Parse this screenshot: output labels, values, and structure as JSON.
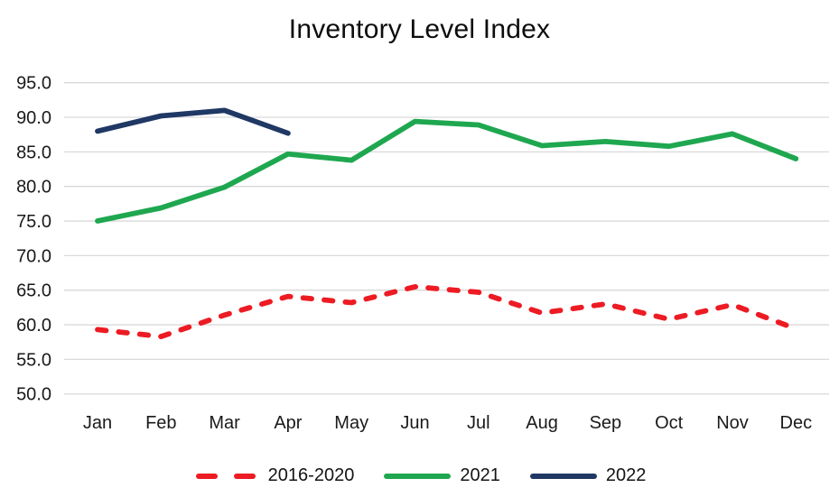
{
  "chart_data": {
    "type": "line",
    "title": "Inventory Level Index",
    "categories": [
      "Jan",
      "Feb",
      "Mar",
      "Apr",
      "May",
      "Jun",
      "Jul",
      "Aug",
      "Sep",
      "Oct",
      "Nov",
      "Dec"
    ],
    "series": [
      {
        "name": "2016-2020",
        "color": "#ed1b23",
        "style": "dashed",
        "values": [
          59.3,
          58.3,
          61.4,
          64.1,
          63.2,
          65.5,
          64.7,
          61.7,
          63.0,
          60.8,
          62.9,
          59.4
        ]
      },
      {
        "name": "2021",
        "color": "#1fa750",
        "style": "solid",
        "values": [
          75.0,
          76.9,
          79.9,
          84.7,
          83.8,
          89.4,
          88.9,
          85.9,
          86.5,
          85.8,
          87.6,
          84.0
        ]
      },
      {
        "name": "2022",
        "color": "#1f3864",
        "style": "solid",
        "values": [
          88.0,
          90.2,
          91.0,
          87.7
        ]
      }
    ],
    "ylim": [
      50,
      95
    ],
    "ytick_step": 5,
    "ytick_labels": [
      "50.0",
      "55.0",
      "60.0",
      "65.0",
      "70.0",
      "75.0",
      "80.0",
      "85.0",
      "90.0",
      "95.0"
    ],
    "grid": true,
    "gridline_color": "#d9d9d9",
    "axis_text_color": "#1a1a1a",
    "legend_position": "bottom"
  }
}
